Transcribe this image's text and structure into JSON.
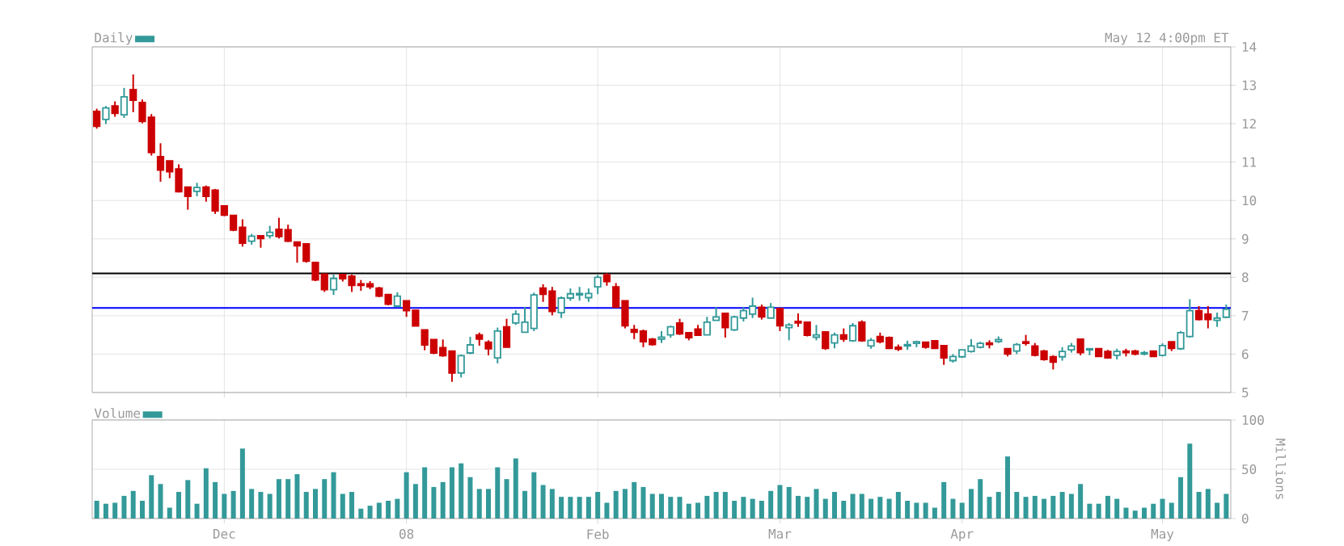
{
  "chart_data": [
    {
      "type": "candlestick",
      "categories": [
        null,
        null,
        null,
        null,
        null,
        null,
        null,
        null,
        null,
        null,
        null,
        null,
        null,
        null,
        null,
        null,
        null,
        null,
        null,
        null,
        null,
        null,
        null,
        null,
        null,
        null,
        null,
        null,
        null,
        null,
        null,
        null,
        null,
        null,
        null,
        null,
        null,
        null,
        null,
        null,
        null,
        null,
        null,
        null,
        null,
        null,
        null,
        null,
        null,
        null,
        null,
        null,
        null,
        null,
        null,
        null,
        null,
        null,
        null,
        null,
        null,
        null,
        null,
        null,
        null,
        null,
        null,
        null,
        null,
        null,
        null,
        null,
        null,
        null,
        null,
        null,
        null,
        null,
        null,
        null,
        null,
        null,
        null,
        null,
        null,
        null,
        null,
        null,
        null,
        null,
        null,
        null,
        null,
        null,
        null,
        null,
        null,
        null,
        null,
        null,
        null,
        null,
        null,
        null,
        null,
        null,
        null,
        null,
        null,
        null,
        null,
        null,
        null,
        null,
        null,
        null,
        null,
        null,
        null,
        null,
        null,
        null,
        null,
        null,
        null
      ],
      "series": [
        {
          "name": "Daily",
          "color": "#339999",
          "ohlc": [
            [
              12.32,
              12.39,
              11.87,
              11.93
            ],
            [
              12.11,
              12.46,
              11.99,
              12.41
            ],
            [
              12.46,
              12.58,
              12.18,
              12.27
            ],
            [
              12.23,
              12.93,
              12.15,
              12.7
            ],
            [
              12.89,
              13.28,
              12.3,
              12.61
            ],
            [
              12.55,
              12.63,
              12.01,
              12.06
            ],
            [
              12.17,
              12.25,
              11.17,
              11.25
            ],
            [
              11.14,
              11.49,
              10.49,
              10.79
            ],
            [
              11.03,
              11.03,
              10.58,
              10.75
            ],
            [
              10.82,
              10.94,
              10.21,
              10.23
            ],
            [
              10.35,
              10.35,
              9.76,
              10.11
            ],
            [
              10.24,
              10.46,
              10.11,
              10.34
            ],
            [
              10.35,
              10.39,
              9.97,
              10.11
            ],
            [
              10.27,
              10.3,
              9.65,
              9.73
            ],
            [
              9.86,
              9.87,
              9.59,
              9.62
            ],
            [
              9.61,
              9.61,
              9.2,
              9.23
            ],
            [
              9.3,
              9.51,
              8.8,
              8.89
            ],
            [
              8.94,
              9.13,
              8.85,
              9.07
            ],
            [
              9.08,
              9.08,
              8.77,
              9.01
            ],
            [
              9.08,
              9.34,
              9.01,
              9.17
            ],
            [
              9.25,
              9.55,
              9.01,
              9.06
            ],
            [
              9.24,
              9.37,
              8.92,
              8.94
            ],
            [
              8.92,
              8.92,
              8.38,
              8.82
            ],
            [
              8.87,
              8.87,
              8.38,
              8.42
            ],
            [
              8.39,
              8.39,
              7.9,
              7.93
            ],
            [
              8.08,
              8.08,
              7.62,
              7.68
            ],
            [
              7.68,
              8.07,
              7.54,
              7.97
            ],
            [
              8.07,
              8.07,
              7.89,
              7.96
            ],
            [
              8.03,
              8.07,
              7.62,
              7.79
            ],
            [
              7.83,
              7.93,
              7.65,
              7.79
            ],
            [
              7.83,
              7.9,
              7.69,
              7.75
            ],
            [
              7.72,
              7.75,
              7.48,
              7.51
            ],
            [
              7.55,
              7.55,
              7.27,
              7.3
            ],
            [
              7.25,
              7.61,
              7.23,
              7.51
            ],
            [
              7.39,
              7.39,
              6.97,
              7.13
            ],
            [
              7.14,
              7.14,
              6.73,
              6.73
            ],
            [
              6.63,
              6.63,
              6.1,
              6.24
            ],
            [
              6.38,
              6.38,
              6.0,
              6.03
            ],
            [
              6.17,
              6.38,
              5.93,
              5.96
            ],
            [
              6.08,
              6.08,
              5.28,
              5.51
            ],
            [
              5.51,
              5.99,
              5.39,
              5.96
            ],
            [
              6.03,
              6.45,
              6.0,
              6.24
            ],
            [
              6.5,
              6.56,
              6.22,
              6.39
            ],
            [
              6.31,
              6.36,
              5.97,
              6.14
            ],
            [
              5.9,
              6.69,
              5.76,
              6.6
            ],
            [
              6.71,
              6.92,
              6.17,
              6.18
            ],
            [
              6.81,
              7.14,
              6.76,
              7.04
            ],
            [
              6.57,
              7.22,
              6.56,
              6.83
            ],
            [
              6.67,
              7.6,
              6.6,
              7.54
            ],
            [
              7.72,
              7.82,
              7.36,
              7.56
            ],
            [
              7.64,
              7.75,
              7.01,
              7.11
            ],
            [
              7.08,
              7.5,
              6.94,
              7.46
            ],
            [
              7.46,
              7.71,
              7.39,
              7.57
            ],
            [
              7.54,
              7.75,
              7.39,
              7.58
            ],
            [
              7.47,
              7.71,
              7.36,
              7.58
            ],
            [
              7.75,
              8.06,
              7.56,
              8.0
            ],
            [
              8.06,
              8.11,
              7.78,
              7.89
            ],
            [
              7.75,
              7.85,
              7.22,
              7.22
            ],
            [
              7.39,
              7.39,
              6.67,
              6.74
            ],
            [
              6.64,
              6.76,
              6.39,
              6.57
            ],
            [
              6.6,
              6.64,
              6.18,
              6.32
            ],
            [
              6.39,
              6.42,
              6.22,
              6.25
            ],
            [
              6.39,
              6.6,
              6.29,
              6.44
            ],
            [
              6.5,
              6.74,
              6.43,
              6.71
            ],
            [
              6.81,
              6.92,
              6.5,
              6.53
            ],
            [
              6.56,
              6.56,
              6.36,
              6.43
            ],
            [
              6.65,
              6.76,
              6.49,
              6.49
            ],
            [
              6.5,
              6.97,
              6.5,
              6.83
            ],
            [
              6.88,
              7.22,
              6.88,
              6.97
            ],
            [
              7.06,
              7.08,
              6.43,
              6.69
            ],
            [
              6.63,
              7.0,
              6.6,
              6.97
            ],
            [
              6.94,
              7.22,
              6.85,
              7.13
            ],
            [
              7.04,
              7.47,
              6.94,
              7.25
            ],
            [
              7.22,
              7.29,
              6.9,
              6.97
            ],
            [
              6.94,
              7.33,
              6.94,
              7.22
            ],
            [
              7.19,
              7.19,
              6.6,
              6.74
            ],
            [
              6.69,
              6.81,
              6.36,
              6.76
            ],
            [
              6.85,
              7.06,
              6.71,
              6.81
            ],
            [
              6.83,
              6.83,
              6.46,
              6.49
            ],
            [
              6.44,
              6.76,
              6.36,
              6.5
            ],
            [
              6.58,
              6.58,
              6.11,
              6.15
            ],
            [
              6.29,
              6.56,
              6.15,
              6.5
            ],
            [
              6.5,
              6.67,
              6.32,
              6.39
            ],
            [
              6.35,
              6.81,
              6.32,
              6.74
            ],
            [
              6.83,
              6.88,
              6.32,
              6.35
            ],
            [
              6.21,
              6.42,
              6.14,
              6.36
            ],
            [
              6.46,
              6.56,
              6.28,
              6.32
            ],
            [
              6.43,
              6.46,
              6.14,
              6.15
            ],
            [
              6.18,
              6.25,
              6.08,
              6.13
            ],
            [
              6.21,
              6.35,
              6.11,
              6.25
            ],
            [
              6.28,
              6.35,
              6.18,
              6.32
            ],
            [
              6.31,
              6.31,
              6.14,
              6.18
            ],
            [
              6.35,
              6.35,
              6.15,
              6.15
            ],
            [
              6.22,
              6.22,
              5.72,
              5.9
            ],
            [
              5.83,
              6.0,
              5.78,
              5.94
            ],
            [
              5.93,
              6.11,
              5.9,
              6.11
            ],
            [
              6.07,
              6.39,
              6.04,
              6.21
            ],
            [
              6.18,
              6.32,
              6.15,
              6.28
            ],
            [
              6.29,
              6.36,
              6.15,
              6.25
            ],
            [
              6.33,
              6.46,
              6.29,
              6.38
            ],
            [
              6.14,
              6.15,
              5.94,
              6.0
            ],
            [
              6.08,
              6.29,
              6.0,
              6.25
            ],
            [
              6.32,
              6.5,
              6.22,
              6.28
            ],
            [
              6.21,
              6.29,
              5.94,
              5.97
            ],
            [
              6.08,
              6.11,
              5.83,
              5.86
            ],
            [
              5.93,
              5.97,
              5.6,
              5.79
            ],
            [
              5.93,
              6.18,
              5.83,
              6.07
            ],
            [
              6.11,
              6.29,
              6.04,
              6.21
            ],
            [
              6.39,
              6.39,
              5.97,
              6.04
            ],
            [
              6.11,
              6.14,
              5.97,
              6.14
            ],
            [
              6.14,
              6.14,
              5.94,
              5.94
            ],
            [
              6.07,
              6.11,
              5.88,
              5.9
            ],
            [
              5.97,
              6.14,
              5.86,
              6.07
            ],
            [
              6.08,
              6.14,
              5.94,
              6.04
            ],
            [
              6.08,
              6.11,
              5.97,
              6.0
            ],
            [
              6.0,
              6.08,
              5.97,
              6.04
            ],
            [
              6.08,
              6.08,
              5.94,
              5.94
            ],
            [
              5.97,
              6.28,
              5.94,
              6.22
            ],
            [
              6.32,
              6.32,
              6.08,
              6.15
            ],
            [
              6.14,
              6.6,
              6.11,
              6.56
            ],
            [
              6.46,
              7.43,
              6.43,
              7.13
            ],
            [
              7.13,
              7.25,
              6.88,
              6.9
            ],
            [
              7.04,
              7.25,
              6.67,
              6.9
            ],
            [
              6.88,
              7.08,
              6.71,
              6.94
            ],
            [
              6.96,
              7.29,
              6.94,
              7.17
            ]
          ],
          "colors": [
            "#cc0000",
            "#339999",
            "#cc0000",
            "#339999",
            "#cc0000",
            "#cc0000",
            "#cc0000",
            "#cc0000",
            "#cc0000",
            "#cc0000",
            "#cc0000",
            "#339999",
            "#cc0000",
            "#cc0000",
            "#cc0000",
            "#cc0000",
            "#cc0000",
            "#339999",
            "#cc0000",
            "#339999",
            "#cc0000",
            "#cc0000",
            "#cc0000",
            "#cc0000",
            "#cc0000",
            "#cc0000",
            "#339999",
            "#cc0000",
            "#cc0000",
            "#cc0000",
            "#cc0000",
            "#cc0000",
            "#cc0000",
            "#339999",
            "#cc0000",
            "#cc0000",
            "#cc0000",
            "#cc0000",
            "#cc0000",
            "#cc0000",
            "#339999",
            "#339999",
            "#cc0000",
            "#cc0000",
            "#339999",
            "#cc0000",
            "#339999",
            "#339999",
            "#339999",
            "#cc0000",
            "#cc0000",
            "#339999",
            "#339999",
            "#339999",
            "#339999",
            "#339999",
            "#cc0000",
            "#cc0000",
            "#cc0000",
            "#cc0000",
            "#cc0000",
            "#cc0000",
            "#339999",
            "#339999",
            "#cc0000",
            "#cc0000",
            "#cc0000",
            "#339999",
            "#339999",
            "#cc0000",
            "#339999",
            "#339999",
            "#339999",
            "#cc0000",
            "#339999",
            "#cc0000",
            "#339999",
            "#cc0000",
            "#cc0000",
            "#339999",
            "#cc0000",
            "#339999",
            "#cc0000",
            "#339999",
            "#cc0000",
            "#339999",
            "#cc0000",
            "#cc0000",
            "#cc0000",
            "#339999",
            "#339999",
            "#cc0000",
            "#cc0000",
            "#cc0000",
            "#339999",
            "#339999",
            "#339999",
            "#339999",
            "#cc0000",
            "#339999",
            "#cc0000",
            "#339999",
            "#cc0000",
            "#cc0000",
            "#cc0000",
            "#cc0000",
            "#339999",
            "#339999",
            "#cc0000",
            "#339999",
            "#cc0000",
            "#cc0000",
            "#339999",
            "#cc0000",
            "#cc0000",
            "#339999",
            "#cc0000",
            "#339999",
            "#cc0000",
            "#339999",
            "#339999",
            "#cc0000",
            "#cc0000",
            "#339999",
            "#339999"
          ]
        }
      ],
      "ylim": [
        5,
        14
      ],
      "yticks": [
        5,
        6,
        7,
        8,
        9,
        10,
        11,
        12,
        13,
        14
      ],
      "ref_lines": [
        {
          "axis": "y",
          "value": 8.1,
          "color": "#000000"
        },
        {
          "axis": "y",
          "value": 7.2,
          "color": "#0000ff"
        }
      ],
      "annotations": [
        "May 12 4:00pm ET"
      ],
      "grid": true,
      "legend": "top left",
      "tick_labels": "y"
    },
    {
      "type": "bar",
      "categories": [
        null,
        null,
        null,
        null,
        null,
        null,
        null,
        null,
        null,
        null,
        null,
        null,
        null,
        null,
        "Dec",
        null,
        null,
        null,
        null,
        null,
        null,
        null,
        null,
        null,
        null,
        null,
        null,
        null,
        null,
        null,
        null,
        null,
        null,
        null,
        "08",
        null,
        null,
        null,
        null,
        null,
        null,
        null,
        null,
        null,
        null,
        null,
        null,
        null,
        null,
        null,
        null,
        null,
        null,
        null,
        null,
        "Feb",
        null,
        null,
        null,
        null,
        null,
        null,
        null,
        null,
        null,
        null,
        null,
        null,
        null,
        null,
        null,
        null,
        null,
        null,
        null,
        "Mar",
        null,
        null,
        null,
        null,
        null,
        null,
        null,
        null,
        null,
        null,
        null,
        null,
        null,
        null,
        null,
        null,
        null,
        null,
        null,
        "Apr",
        null,
        null,
        null,
        null,
        null,
        null,
        null,
        null,
        null,
        null,
        null,
        null,
        null,
        null,
        null,
        null,
        null,
        null,
        null,
        null,
        null,
        "May",
        null,
        null,
        null,
        null,
        null,
        null,
        null
      ],
      "series": [
        {
          "name": "Volume",
          "color": "#339999",
          "values": [
            18,
            15,
            16,
            23,
            28,
            18,
            44,
            35,
            11,
            27,
            39,
            15,
            51,
            37,
            25,
            28,
            71,
            30,
            27,
            25,
            40,
            40,
            45,
            27,
            30,
            40,
            47,
            25,
            27,
            10,
            13,
            16,
            18,
            20,
            47,
            35,
            52,
            32,
            37,
            52,
            56,
            42,
            30,
            30,
            52,
            40,
            61,
            28,
            47,
            34,
            30,
            22,
            22,
            22,
            22,
            27,
            16,
            28,
            30,
            37,
            32,
            25,
            25,
            22,
            22,
            15,
            16,
            23,
            27,
            27,
            18,
            22,
            20,
            18,
            28,
            34,
            32,
            23,
            22,
            30,
            20,
            27,
            18,
            25,
            25,
            20,
            22,
            20,
            27,
            18,
            16,
            16,
            11,
            37,
            20,
            16,
            30,
            40,
            22,
            27,
            63,
            27,
            22,
            23,
            20,
            23,
            27,
            25,
            35,
            15,
            15,
            23,
            20,
            11,
            8,
            11,
            15,
            20,
            16,
            42,
            76,
            27,
            30,
            16,
            25
          ]
        }
      ],
      "ylim": [
        0,
        100
      ],
      "yticks": [
        0,
        50,
        100
      ],
      "ylabel": "Millions",
      "grid": true,
      "legend": "top left"
    }
  ]
}
